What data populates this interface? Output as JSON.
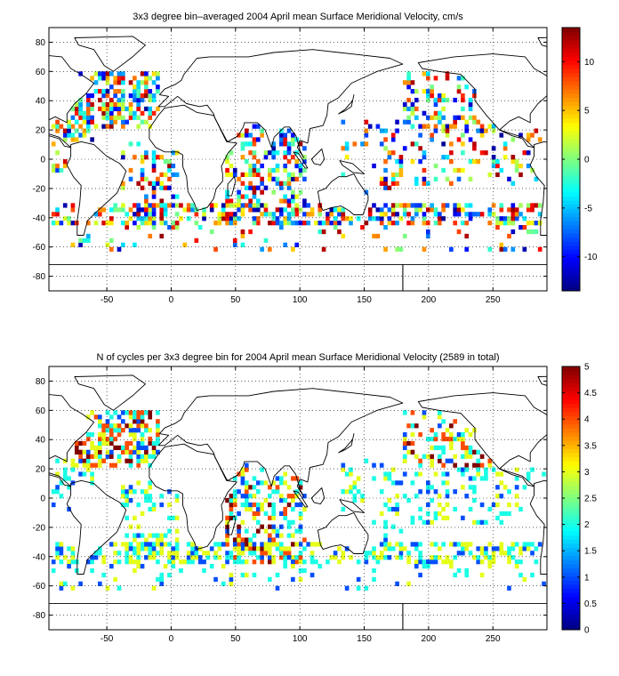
{
  "chart_data": [
    {
      "type": "heatmap",
      "title": "3x3 degree bin–averaged 2004 April mean Surface Meridional Velocity, cm/s",
      "xlabel": "",
      "ylabel": "",
      "xlim": [
        -95,
        292
      ],
      "ylim": [
        -90,
        90
      ],
      "x_ticks": [
        -50,
        0,
        50,
        100,
        150,
        200,
        250
      ],
      "y_ticks": [
        -80,
        -60,
        -40,
        -20,
        0,
        20,
        40,
        60,
        80
      ],
      "grid": true,
      "bin_size_deg": 3,
      "colorbar": {
        "min": -13.5,
        "max": 13.5,
        "ticks": [
          -10,
          -5,
          0,
          5,
          10
        ],
        "colormap": "jet"
      },
      "regions": [
        {
          "x": [
            -80,
            -10
          ],
          "y": [
            20,
            60
          ],
          "range": [
            -13,
            13
          ],
          "density": 0.55
        },
        {
          "x": [
            -95,
            -60
          ],
          "y": [
            -10,
            30
          ],
          "range": [
            -13,
            13
          ],
          "density": 0.3
        },
        {
          "x": [
            -40,
            5
          ],
          "y": [
            -50,
            15
          ],
          "range": [
            -13,
            13
          ],
          "density": 0.3
        },
        {
          "x": [
            40,
            105
          ],
          "y": [
            -45,
            25
          ],
          "range": [
            -13,
            13
          ],
          "density": 0.42
        },
        {
          "x": [
            130,
            180
          ],
          "y": [
            -35,
            25
          ],
          "range": [
            -13,
            13
          ],
          "density": 0.12
        },
        {
          "x": [
            180,
            260
          ],
          "y": [
            20,
            60
          ],
          "range": [
            -13,
            13
          ],
          "density": 0.4
        },
        {
          "x": [
            160,
            290
          ],
          "y": [
            -20,
            20
          ],
          "range": [
            -13,
            13
          ],
          "density": 0.22
        },
        {
          "x": [
            -95,
            290
          ],
          "y": [
            -45,
            -32
          ],
          "range": [
            -13,
            13
          ],
          "density": 0.45
        },
        {
          "x": [
            -95,
            290
          ],
          "y": [
            -65,
            -45
          ],
          "range": [
            -13,
            13
          ],
          "density": 0.1
        }
      ]
    },
    {
      "type": "heatmap",
      "title": "N of cycles per 3x3 degree bin for 2004 April mean Surface Meridional Velocity (2589 in total)",
      "xlabel": "",
      "ylabel": "",
      "xlim": [
        -95,
        292
      ],
      "ylim": [
        -90,
        90
      ],
      "x_ticks": [
        -50,
        0,
        50,
        100,
        150,
        200,
        250
      ],
      "y_ticks": [
        -80,
        -60,
        -40,
        -20,
        0,
        20,
        40,
        60,
        80
      ],
      "grid": true,
      "bin_size_deg": 3,
      "total_cycles": 2589,
      "colorbar": {
        "min": 0,
        "max": 5,
        "ticks": [
          0,
          0.5,
          1,
          1.5,
          2,
          2.5,
          3,
          3.5,
          4,
          4.5,
          5
        ],
        "colormap": "jet"
      },
      "regions": [
        {
          "x": [
            -80,
            -10
          ],
          "y": [
            20,
            60
          ],
          "range": [
            1,
            5
          ],
          "density": 0.55
        },
        {
          "x": [
            -95,
            -60
          ],
          "y": [
            -10,
            30
          ],
          "range": [
            1,
            3
          ],
          "density": 0.3
        },
        {
          "x": [
            -40,
            5
          ],
          "y": [
            -50,
            15
          ],
          "range": [
            1,
            3.5
          ],
          "density": 0.3
        },
        {
          "x": [
            40,
            105
          ],
          "y": [
            -45,
            25
          ],
          "range": [
            1,
            5
          ],
          "density": 0.42
        },
        {
          "x": [
            130,
            180
          ],
          "y": [
            -35,
            25
          ],
          "range": [
            1,
            3
          ],
          "density": 0.12
        },
        {
          "x": [
            180,
            260
          ],
          "y": [
            20,
            60
          ],
          "range": [
            1,
            5
          ],
          "density": 0.4
        },
        {
          "x": [
            160,
            290
          ],
          "y": [
            -20,
            20
          ],
          "range": [
            1,
            3
          ],
          "density": 0.22
        },
        {
          "x": [
            -95,
            290
          ],
          "y": [
            -45,
            -32
          ],
          "range": [
            1,
            3.5
          ],
          "density": 0.45
        },
        {
          "x": [
            -95,
            290
          ],
          "y": [
            -65,
            -45
          ],
          "range": [
            1,
            3
          ],
          "density": 0.1
        }
      ]
    }
  ]
}
